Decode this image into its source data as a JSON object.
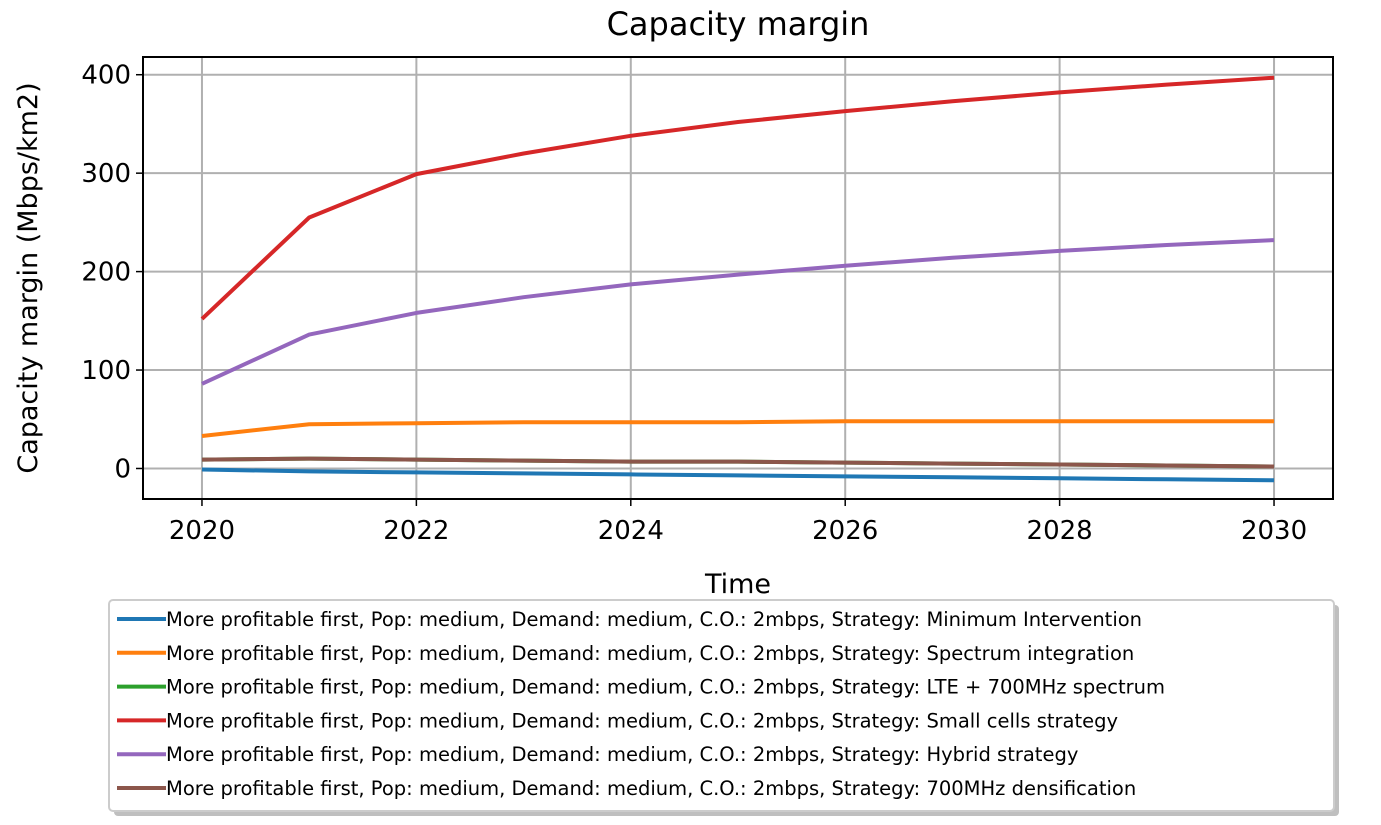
{
  "chart_data": {
    "type": "line",
    "title": "Capacity margin",
    "xlabel": "Time",
    "ylabel": "Capacity margin (Mbps/km2)",
    "x": [
      2020,
      2021,
      2022,
      2023,
      2024,
      2025,
      2026,
      2027,
      2028,
      2029,
      2030
    ],
    "xlim": [
      2019.45,
      2030.55
    ],
    "ylim": [
      -31,
      418
    ],
    "xticks": [
      2020,
      2022,
      2024,
      2026,
      2028,
      2030
    ],
    "yticks": [
      0,
      100,
      200,
      300,
      400
    ],
    "grid": true,
    "legend_position": "below",
    "series": [
      {
        "name": "More profitable first, Pop: medium, Demand: medium, C.O.: 2mbps, Strategy: Minimum Intervention",
        "color": "#1f77b4",
        "values": [
          -1,
          -3,
          -4,
          -5,
          -6,
          -7,
          -8,
          -9,
          -10,
          -11,
          -12
        ]
      },
      {
        "name": "More profitable first, Pop: medium, Demand: medium, C.O.: 2mbps, Strategy: Spectrum integration",
        "color": "#ff7f0e",
        "values": [
          33,
          45,
          46,
          47,
          47,
          47,
          48,
          48,
          48,
          48,
          48
        ]
      },
      {
        "name": "More profitable first, Pop: medium, Demand: medium, C.O.: 2mbps, Strategy: LTE + 700MHz spectrum",
        "color": "#2ca02c",
        "values": [
          9,
          10,
          9,
          8,
          7,
          7,
          6,
          5,
          4,
          3,
          2
        ]
      },
      {
        "name": "More profitable first, Pop: medium, Demand: medium, C.O.: 2mbps, Strategy: Small cells strategy",
        "color": "#d62728",
        "values": [
          152,
          255,
          299,
          320,
          338,
          352,
          363,
          373,
          382,
          390,
          397
        ]
      },
      {
        "name": "More profitable first, Pop: medium, Demand: medium, C.O.: 2mbps, Strategy: Hybrid strategy",
        "color": "#9467bd",
        "values": [
          86,
          136,
          158,
          174,
          187,
          197,
          206,
          214,
          221,
          227,
          232
        ]
      },
      {
        "name": "More profitable first, Pop: medium, Demand: medium, C.O.: 2mbps, Strategy: 700MHz densification",
        "color": "#8c564b",
        "values": [
          9,
          10,
          9,
          8,
          7,
          7,
          6,
          5,
          4,
          3,
          2
        ]
      }
    ]
  }
}
